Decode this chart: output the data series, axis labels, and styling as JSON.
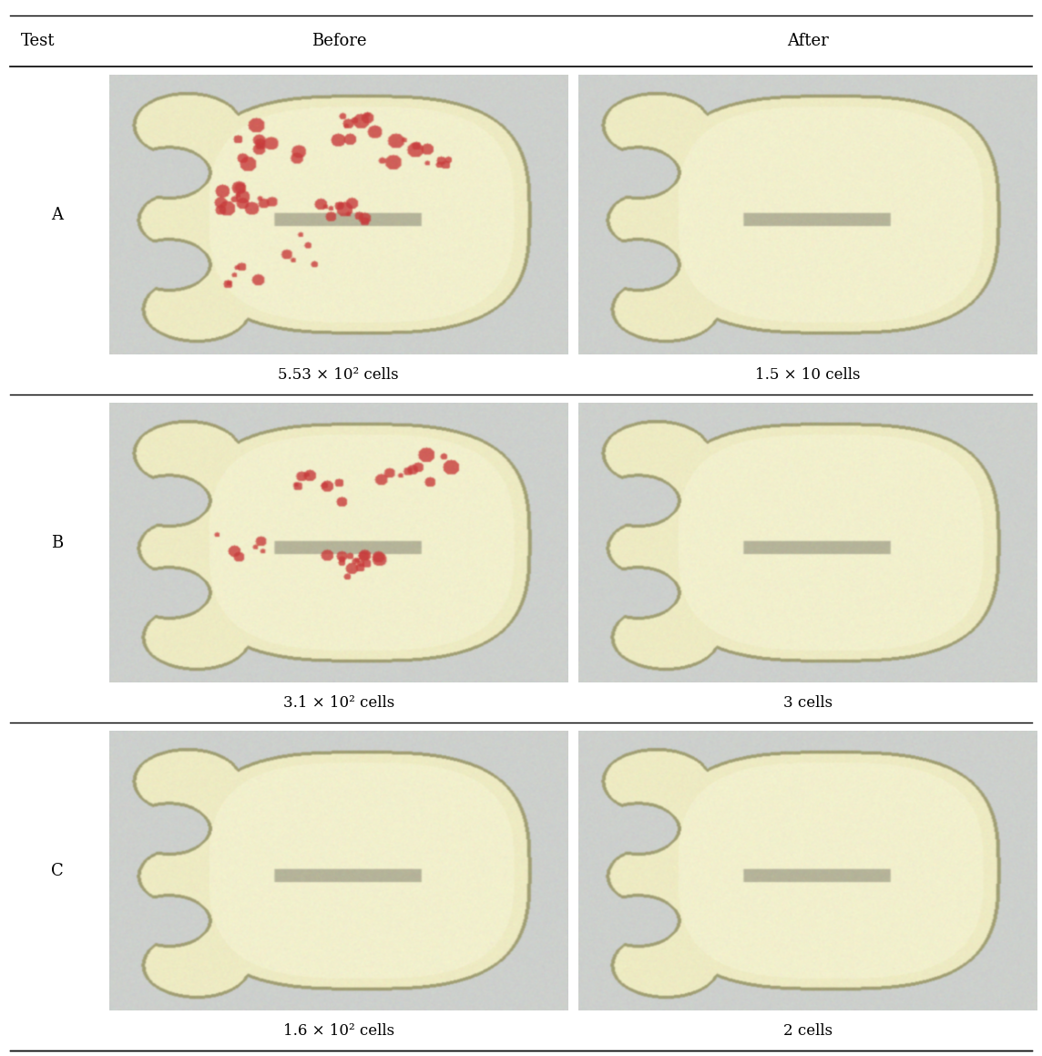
{
  "title_row": [
    "Test",
    "Before",
    "After"
  ],
  "rows": [
    {
      "label": "A",
      "before_caption": "5.53 × 10² cells",
      "after_caption": "1.5 × 10 cells",
      "before_dots": true,
      "after_dots": false,
      "before_density": 0.9,
      "after_density": 0.0
    },
    {
      "label": "B",
      "before_caption": "3.1 × 10² cells",
      "after_caption": "3 cells",
      "before_dots": true,
      "after_dots": false,
      "before_density": 0.55,
      "after_density": 0.0
    },
    {
      "label": "C",
      "before_caption": "1.6 × 10² cells",
      "after_caption": "2 cells",
      "before_dots": false,
      "after_dots": false,
      "before_density": 0.0,
      "after_density": 0.0
    }
  ],
  "header_fontsize": 13,
  "label_fontsize": 13,
  "caption_fontsize": 12,
  "bg_color": "#ffffff",
  "text_color": "#000000",
  "agar_color": [
    238,
    235,
    195
  ],
  "container_bg": [
    210,
    215,
    210
  ],
  "outer_bg": [
    200,
    200,
    200
  ],
  "plate_border_color": [
    180,
    175,
    140
  ],
  "inner_agar_color": [
    242,
    240,
    205
  ]
}
